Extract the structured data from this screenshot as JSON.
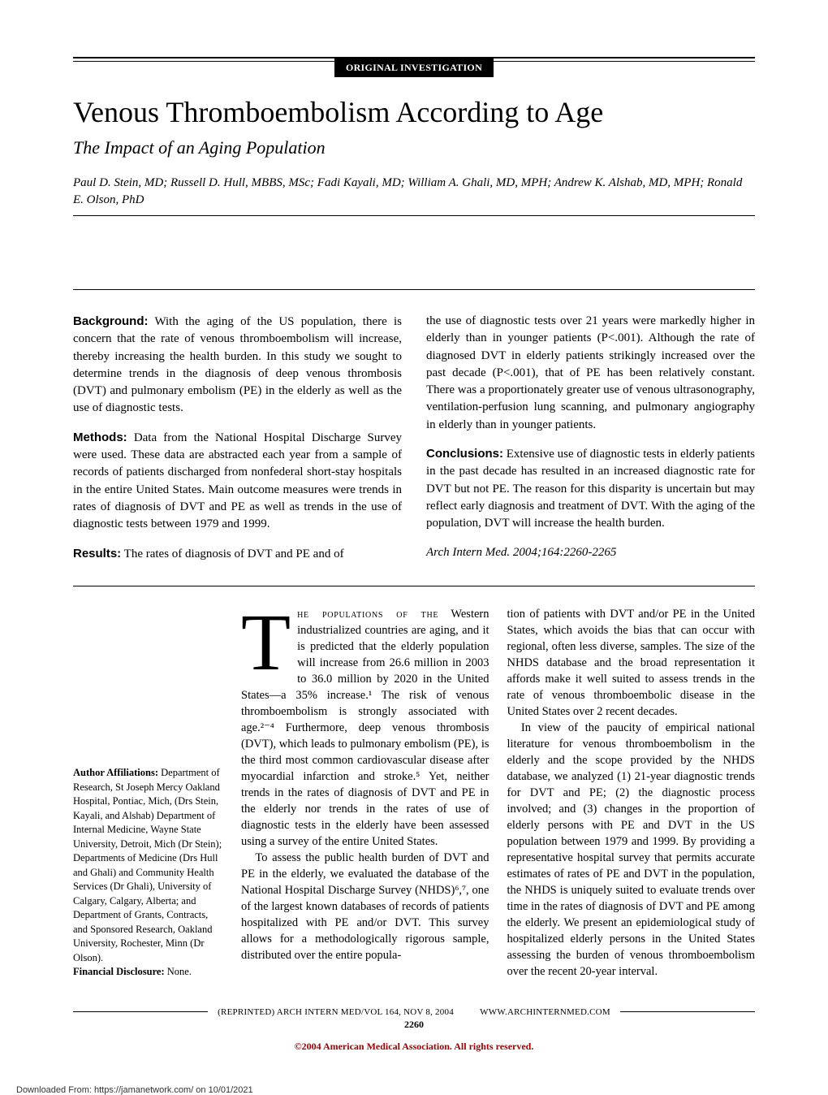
{
  "header": {
    "section_label": "ORIGINAL INVESTIGATION",
    "title": "Venous Thromboembolism According to Age",
    "subtitle": "The Impact of an Aging Population",
    "authors": "Paul D. Stein, MD; Russell D. Hull, MBBS, MSc; Fadi Kayali, MD; William A. Ghali, MD, MPH; Andrew K. Alshab, MD, MPH; Ronald E. Olson, PhD"
  },
  "abstract": {
    "background_label": "Background:",
    "background": " With the aging of the US population, there is concern that the rate of venous thromboembolism will increase, thereby increasing the health burden. In this study we sought to determine trends in the diagnosis of deep venous thrombosis (DVT) and pulmonary embolism (PE) in the elderly as well as the use of diagnostic tests.",
    "methods_label": "Methods:",
    "methods": " Data from the National Hospital Discharge Survey were used. These data are abstracted each year from a sample of records of patients discharged from nonfederal short-stay hospitals in the entire United States. Main outcome measures were trends in rates of diagnosis of DVT and PE as well as trends in the use of diagnostic tests between 1979 and 1999.",
    "results_label": "Results:",
    "results_left": " The rates of diagnosis of DVT and PE and of",
    "results_right": "the use of diagnostic tests over 21 years were markedly higher in elderly than in younger patients (P<.001). Although the rate of diagnosed DVT in elderly patients strikingly increased over the past decade (P<.001), that of PE has been relatively constant. There was a proportionately greater use of venous ultrasonography, ventilation-perfusion lung scanning, and pulmonary angiography in elderly than in younger patients.",
    "conclusions_label": "Conclusions:",
    "conclusions": " Extensive use of diagnostic tests in elderly patients in the past decade has resulted in an increased diagnostic rate for DVT but not PE. The reason for this disparity is uncertain but may reflect early diagnosis and treatment of DVT. With the aging of the population, DVT will increase the health burden.",
    "citation": "Arch Intern Med. 2004;164:2260-2265"
  },
  "affiliations": {
    "heading": "Author Affiliations:",
    "text": " Department of Research, St Joseph Mercy Oakland Hospital, Pontiac, Mich, (Drs Stein, Kayali, and Alshab) Department of Internal Medicine, Wayne State University, Detroit, Mich (Dr Stein); Departments of Medicine (Drs Hull and Ghali) and Community Health Services (Dr Ghali), University of Calgary, Calgary, Alberta; and Department of Grants, Contracts, and Sponsored Research, Oakland University, Rochester, Minn (Dr Olson).",
    "disclosure_label": "Financial Disclosure:",
    "disclosure": " None."
  },
  "body": {
    "dropcap": "T",
    "para1_caps": "he populations of the",
    "para1_rest": " Western industrialized countries are aging, and it is predicted that the elderly population will increase from 26.6 million in 2003 to 36.0 million by 2020 in the United States—a 35% increase.¹ The risk of venous thromboembolism is strongly associated with age.²⁻⁴ Furthermore, deep venous thrombosis (DVT), which leads to pulmonary embolism (PE), is the third most common cardiovascular disease after myocardial infarction and stroke.⁵ Yet, neither trends in the rates of diagnosis of DVT and PE in the elderly nor trends in the rates of use of diagnostic tests in the elderly have been assessed using a survey of the entire United States.",
    "para2": "To assess the public health burden of DVT and PE in the elderly, we evaluated the database of the National Hospital Discharge Survey (NHDS)⁶,⁷, one of the largest known databases of records of patients hospitalized with PE and/or DVT. This survey allows for a methodologically rigorous sample, distributed over the entire popula-",
    "para3": "tion of patients with DVT and/or PE in the United States, which avoids the bias that can occur with regional, often less diverse, samples. The size of the NHDS database and the broad representation it affords make it well suited to assess trends in the rate of venous thromboembolic disease in the United States over 2 recent decades.",
    "para4": "In view of the paucity of empirical national literature for venous thromboembolism in the elderly and the scope provided by the NHDS database, we analyzed (1) 21-year diagnostic trends for DVT and PE; (2) the diagnostic process involved; and (3) changes in the proportion of elderly persons with PE and DVT in the US population between 1979 and 1999. By providing a representative hospital survey that permits accurate estimates of rates of PE and DVT in the population, the NHDS is uniquely suited to evaluate trends over time in the rates of diagnosis of DVT and PE among the elderly. We present an epidemiological study of hospitalized elderly persons in the United States assessing the burden of venous thromboembolism over the recent 20-year interval."
  },
  "footer": {
    "reprinted": "(REPRINTED) ARCH INTERN MED/VOL 164, NOV 8, 2004",
    "url": "WWW.ARCHINTERNMED.COM",
    "page_number": "2260",
    "copyright": "©2004 American Medical Association. All rights reserved.",
    "download": "Downloaded From: https://jamanetwork.com/ on 10/01/2021"
  },
  "colors": {
    "text": "#000000",
    "background": "#ffffff",
    "copyright": "#a00000"
  }
}
